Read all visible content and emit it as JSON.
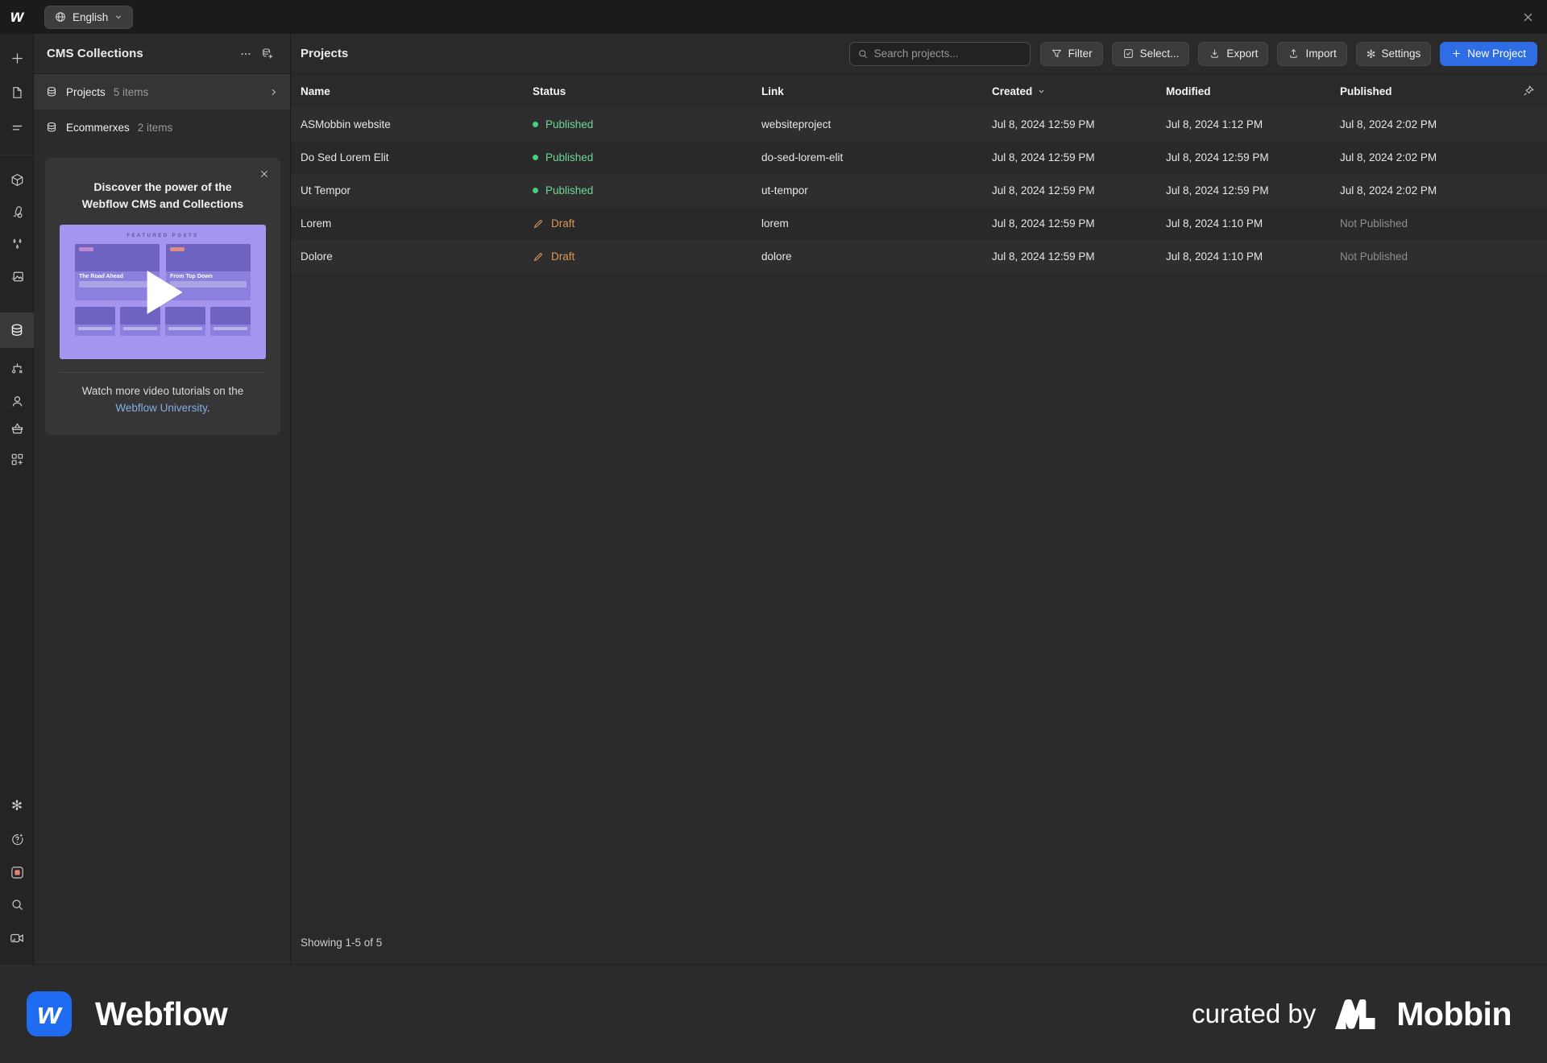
{
  "topbar": {
    "language_label": "English"
  },
  "sidebar_rail": {
    "icons_top": [
      "add",
      "pages",
      "navigator",
      "components",
      "styles",
      "interactions",
      "assets",
      "cms",
      "logic",
      "users",
      "ecommerce",
      "apps"
    ],
    "icons_bottom": [
      "settings",
      "help",
      "record",
      "search",
      "video-tutorials"
    ],
    "active_icon": "cms"
  },
  "cms_panel": {
    "title": "CMS Collections",
    "collections": [
      {
        "name": "Projects",
        "count": "5 items"
      },
      {
        "name": "Ecommerxes",
        "count": "2 items"
      }
    ],
    "promo": {
      "title": "Discover the power of the Webflow CMS and Collections",
      "thumb_featured_label": "FEATURED POSTS",
      "thumb_card1": "The Road Ahead",
      "thumb_card2": "From Top Down",
      "foot_text": "Watch more video tutorials on the",
      "foot_link": "Webflow University",
      "foot_period": "."
    }
  },
  "main": {
    "title": "Projects",
    "search_placeholder": "Search projects...",
    "toolbar": [
      {
        "label": "Filter"
      },
      {
        "label": "Select..."
      },
      {
        "label": "Export"
      },
      {
        "label": "Import"
      },
      {
        "label": "Settings"
      }
    ],
    "new_project_label": "New Project",
    "table": {
      "columns": [
        "Name",
        "Status",
        "Link",
        "Created",
        "Modified",
        "Published"
      ],
      "sorted_column": "Created",
      "rows": [
        {
          "name": "ASMobbin website",
          "status": "Published",
          "status_type": "published",
          "link": "websiteproject",
          "created": "Jul 8, 2024 12:59 PM",
          "modified": "Jul 8, 2024 1:12 PM",
          "published": "Jul 8, 2024 2:02 PM"
        },
        {
          "name": "Do Sed Lorem Elit",
          "status": "Published",
          "status_type": "published",
          "link": "do-sed-lorem-elit",
          "created": "Jul 8, 2024 12:59 PM",
          "modified": "Jul 8, 2024 12:59 PM",
          "published": "Jul 8, 2024 2:02 PM"
        },
        {
          "name": "Ut Tempor",
          "status": "Published",
          "status_type": "published",
          "link": "ut-tempor",
          "created": "Jul 8, 2024 12:59 PM",
          "modified": "Jul 8, 2024 12:59 PM",
          "published": "Jul 8, 2024 2:02 PM"
        },
        {
          "name": "Lorem",
          "status": "Draft",
          "status_type": "draft",
          "link": "lorem",
          "created": "Jul 8, 2024 12:59 PM",
          "modified": "Jul 8, 2024 1:10 PM",
          "published": "Not Published"
        },
        {
          "name": "Dolore",
          "status": "Draft",
          "status_type": "draft",
          "link": "dolore",
          "created": "Jul 8, 2024 12:59 PM",
          "modified": "Jul 8, 2024 1:10 PM",
          "published": "Not Published"
        }
      ],
      "showing": "Showing 1-5 of 5"
    }
  },
  "footer": {
    "brand": "Webflow",
    "curated_by": "curated by",
    "curator": "Mobbin"
  },
  "colors": {
    "accent_blue": "#2e6de4",
    "published_green": "#6ed793",
    "draft_orange": "#dd9857",
    "link_blue": "#84ade4",
    "record_red": "#e8837a",
    "promo_purple": "#a495ef"
  }
}
